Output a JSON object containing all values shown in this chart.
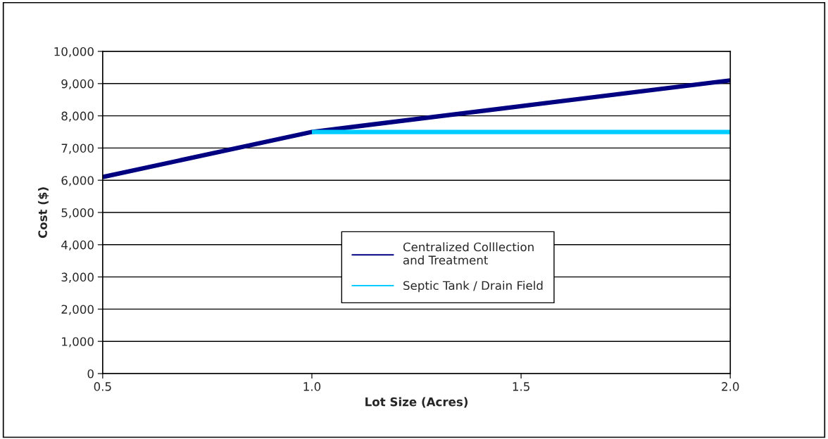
{
  "chart_data": {
    "type": "line",
    "xlabel": "Lot Size (Acres)",
    "ylabel": "Cost ($)",
    "series": [
      {
        "name": "Centralized Colllection\nand Treatment",
        "color": "#000080",
        "x": [
          0.5,
          1.0,
          1.5,
          2.0
        ],
        "values": [
          6100,
          7500,
          8300,
          9100
        ]
      },
      {
        "name": "Septic Tank / Drain Field",
        "color": "#00ccff",
        "x": [
          1.0,
          2.0
        ],
        "values": [
          7500,
          7500
        ]
      }
    ],
    "xlim": [
      0.5,
      2.0
    ],
    "xticks": [
      {
        "value": 0.5,
        "label": "0.5"
      },
      {
        "value": 1.0,
        "label": "1.0"
      },
      {
        "value": 1.5,
        "label": "1.5"
      },
      {
        "value": 2.0,
        "label": "2.0"
      }
    ],
    "ylim": [
      0,
      10000
    ],
    "yticks": [
      0,
      {
        "value": 1000,
        "label": "1,000"
      },
      {
        "value": 2000,
        "label": "2,000"
      },
      {
        "value": 3000,
        "label": "3,000"
      },
      {
        "value": 4000,
        "label": "4,000"
      },
      {
        "value": 5000,
        "label": "5,000"
      },
      {
        "value": 6000,
        "label": "6,000"
      },
      {
        "value": 7000,
        "label": "7,000"
      },
      {
        "value": 8000,
        "label": "8,000"
      },
      {
        "value": 9000,
        "label": "9,000"
      },
      {
        "value": 10000,
        "label": "10,000"
      }
    ],
    "grid": "y",
    "legend": "center",
    "marker": "none",
    "line_style": "solid"
  }
}
